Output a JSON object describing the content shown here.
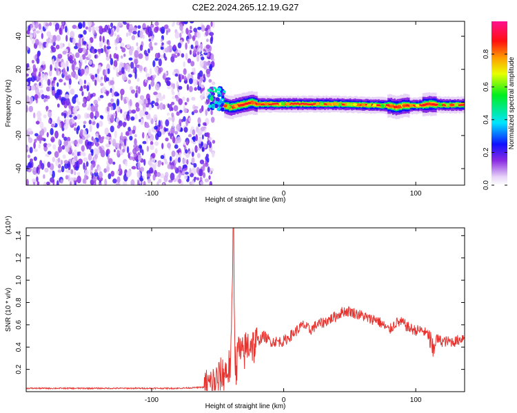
{
  "figure_title": "C2E2.2024.265.12.19.G27",
  "chart_data": [
    {
      "type": "heatmap",
      "title": "C2E2.2024.265.12.19.G27",
      "xlabel": "Height of straight line (km)",
      "ylabel": "Frequency (Hz)",
      "xlim": [
        -195,
        137
      ],
      "ylim": [
        -50,
        49
      ],
      "xticks": [
        -100,
        0,
        100
      ],
      "xtick_labels": [
        "-100",
        "0",
        "100"
      ],
      "yticks": [
        -40,
        -20,
        0,
        20,
        40
      ],
      "ytick_labels": [
        "-40",
        "-20",
        "0",
        "20",
        "40"
      ],
      "colormap": "rainbow (white to purple to blue to cyan to green to yellow to red to magenta)",
      "colorbar": {
        "label": "Normalized spectral amplitude",
        "ticks": [
          0.0,
          0.2,
          0.4,
          0.6,
          0.8
        ],
        "tick_labels": [
          "0.0",
          "0.2",
          "0.4",
          "0.6",
          "0.8"
        ],
        "range": [
          0,
          1
        ]
      },
      "noise_region_x": [
        -195,
        -55
      ],
      "signal_burst": {
        "x": [
          -57,
          -45
        ],
        "freq_center": 2,
        "amplitude": 0.45
      },
      "signal_track": {
        "x": [
          -45,
          137
        ],
        "freq": [
          [
            -45,
            -2
          ],
          [
            -40,
            -3
          ],
          [
            -35,
            -2
          ],
          [
            -30,
            -1
          ],
          [
            -25,
            0
          ],
          [
            -20,
            -1
          ],
          [
            -10,
            -1
          ],
          [
            0,
            -1
          ],
          [
            20,
            -1
          ],
          [
            40,
            -1
          ],
          [
            60,
            -1.5
          ],
          [
            80,
            -2
          ],
          [
            85,
            -3
          ],
          [
            90,
            -2
          ],
          [
            100,
            -2
          ],
          [
            110,
            -1
          ],
          [
            120,
            -1.5
          ],
          [
            137,
            -1.5
          ]
        ],
        "amplitude": 0.9
      }
    },
    {
      "type": "line",
      "xlabel": "Height of straight line (km)",
      "ylabel": "SNR (10 * v/v)",
      "y_multiplier": "(x10⁴)",
      "xlim": [
        -195,
        137
      ],
      "ylim": [
        0,
        1.47
      ],
      "xticks": [
        -100,
        0,
        100
      ],
      "xtick_labels": [
        "-100",
        "0",
        "100"
      ],
      "yticks": [
        0.2,
        0.4,
        0.6,
        0.8,
        1.0,
        1.2,
        1.4
      ],
      "ytick_labels": [
        "0.2",
        "0.4",
        "0.6",
        "0.8",
        "1.0",
        "1.2",
        "1.4"
      ],
      "color": "#e8322e",
      "series": [
        {
          "x": [
            -195,
            -180,
            -160,
            -140,
            -120,
            -100,
            -80,
            -60,
            -55,
            -50,
            -45,
            -42,
            -40,
            -38,
            -37,
            -36,
            -34,
            -32,
            -30,
            -28,
            -25,
            -22,
            -20,
            -15,
            -10,
            -5,
            0,
            5,
            10,
            15,
            20,
            25,
            30,
            35,
            40,
            45,
            50,
            55,
            60,
            65,
            70,
            75,
            80,
            85,
            90,
            95,
            100,
            105,
            110,
            113,
            115,
            120,
            125,
            130,
            135,
            137
          ],
          "values": [
            0.03,
            0.03,
            0.03,
            0.03,
            0.03,
            0.03,
            0.03,
            0.04,
            0.06,
            0.1,
            0.17,
            0.2,
            0.25,
            1.47,
            0.4,
            0.2,
            0.4,
            0.3,
            0.35,
            0.4,
            0.45,
            0.4,
            0.45,
            0.5,
            0.45,
            0.45,
            0.45,
            0.5,
            0.55,
            0.6,
            0.55,
            0.6,
            0.62,
            0.65,
            0.68,
            0.72,
            0.72,
            0.7,
            0.68,
            0.65,
            0.65,
            0.6,
            0.55,
            0.62,
            0.62,
            0.57,
            0.55,
            0.55,
            0.5,
            0.35,
            0.48,
            0.45,
            0.45,
            0.45,
            0.48,
            0.5
          ]
        }
      ]
    }
  ]
}
